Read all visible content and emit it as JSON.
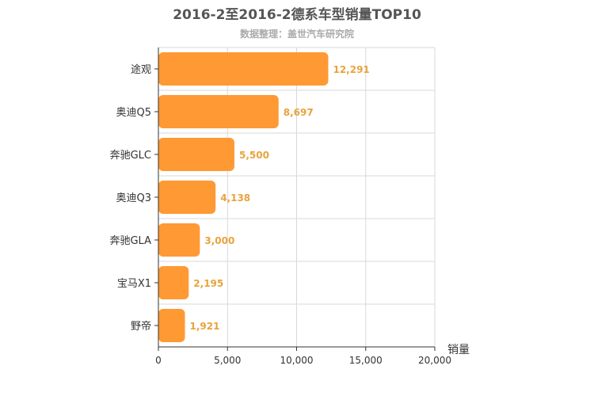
{
  "chart_data": {
    "type": "bar",
    "orientation": "horizontal",
    "title": "2016-2至2016-2德系车型销量TOP10",
    "subtitle": "数据整理：盖世汽车研究院",
    "xlabel": "销量",
    "ylabel": "",
    "categories": [
      "途观",
      "奥迪Q5",
      "奔驰GLC",
      "奥迪Q3",
      "奔驰GLA",
      "宝马X1",
      "野帝"
    ],
    "values": [
      12291,
      8697,
      5500,
      4138,
      3000,
      2195,
      1921
    ],
    "value_labels": [
      "12,291",
      "8,697",
      "5,500",
      "4,138",
      "3,000",
      "2,195",
      "1,921"
    ],
    "xlim": [
      0,
      20000
    ],
    "x_ticks": [
      0,
      5000,
      10000,
      15000,
      20000
    ],
    "x_tick_labels": [
      "0",
      "5,000",
      "10,000",
      "15,000",
      "20,000"
    ],
    "grid": true,
    "legend": "none",
    "bar_color": "#ff9933",
    "label_color": "#e8a33d"
  }
}
